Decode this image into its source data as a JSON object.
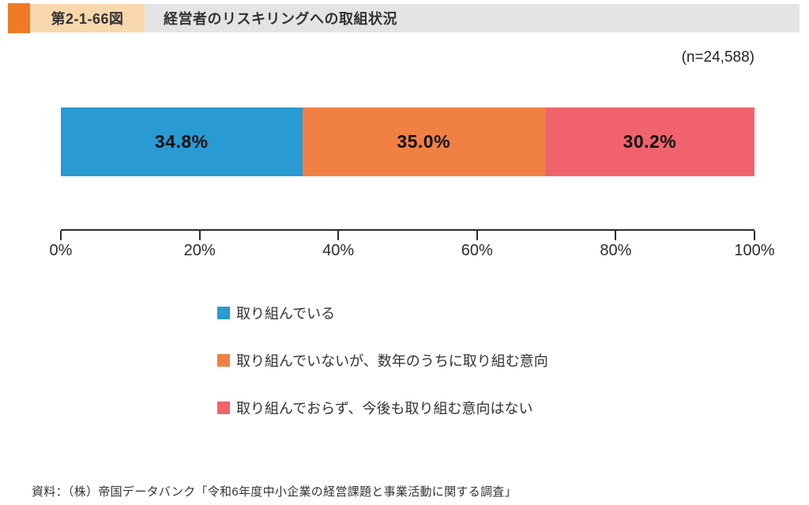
{
  "header": {
    "figure_number": "第2-1-66図",
    "title": "経営者のリスキリングへの取組状況"
  },
  "sample_size": "(n=24,588)",
  "chart_data": {
    "type": "bar",
    "subtype": "horizontal-stacked-single-bar",
    "title": "経営者のリスキリングへの取組状況",
    "n": 24588,
    "xlim": [
      0,
      100
    ],
    "x_ticks": [
      "0%",
      "20%",
      "40%",
      "60%",
      "80%",
      "100%"
    ],
    "grid": false,
    "legend_position": "below-center",
    "series": [
      {
        "label": "取り組んでいる",
        "value": 34.8,
        "display": "34.8%",
        "color": "#2a9ad2"
      },
      {
        "label": "取り組んでいないが、数年のうちに取り組む意向",
        "value": 35.0,
        "display": "35.0%",
        "color": "#f18045"
      },
      {
        "label": "取り組んでおらず、今後も取り組む意向はない",
        "value": 30.2,
        "display": "30.2%",
        "color": "#f0636d"
      }
    ]
  },
  "source": "資料：（株）帝国データバンク「令和6年度中小企業の経営課題と事業活動に関する調査」",
  "colors": {
    "header_accent": "#ef7b26",
    "figure_label_bg": "#f9d7ad",
    "title_bg": "#e4e4e6",
    "axis": "#2b2b2b"
  }
}
